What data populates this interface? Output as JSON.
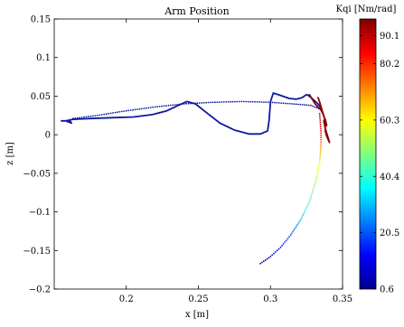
{
  "chart_data": {
    "type": "line",
    "title": "Arm Position",
    "xlabel": "x [m]",
    "ylabel": "z [m]",
    "xlim": [
      0.15,
      0.35
    ],
    "ylim": [
      -0.2,
      0.15
    ],
    "grid": false,
    "x_ticks": [
      0.2,
      0.25,
      0.3,
      0.35
    ],
    "x_tick_labels": [
      "0.2",
      "0.25",
      "0.3",
      "0.35"
    ],
    "y_ticks": [
      -0.2,
      -0.15,
      -0.1,
      -0.05,
      0,
      0.05,
      0.1,
      0.15
    ],
    "y_tick_labels": [
      "−0.2",
      "−0.15",
      "−0.1",
      "−0.05",
      "0",
      "0.05",
      "0.1",
      "0.15"
    ],
    "colorbar": {
      "title": "Kqi [Nm/rad]",
      "range": [
        0.6,
        96
      ],
      "ticks": [
        0.6,
        20.5,
        40.4,
        60.3,
        80.2,
        90.1
      ],
      "tick_labels": [
        "0.6",
        "20.5",
        "40.4",
        "60.3",
        "80.2",
        "90.1"
      ],
      "colormap": "jet"
    },
    "series": [
      {
        "style": "solid",
        "color": "#0c1a9e",
        "x": [
          0.155,
          0.161,
          0.162,
          0.158,
          0.163,
          0.175,
          0.19,
          0.205,
          0.218,
          0.228,
          0.236,
          0.242,
          0.248,
          0.256,
          0.265,
          0.275,
          0.285,
          0.293,
          0.298,
          0.299,
          0.3,
          0.302,
          0.307,
          0.313,
          0.318,
          0.322,
          0.325,
          0.327,
          0.33,
          0.333,
          0.335
        ],
        "y": [
          0.018,
          0.018,
          0.015,
          0.018,
          0.02,
          0.021,
          0.022,
          0.023,
          0.026,
          0.031,
          0.038,
          0.043,
          0.04,
          0.028,
          0.015,
          0.006,
          0.001,
          0.001,
          0.005,
          0.018,
          0.043,
          0.054,
          0.051,
          0.047,
          0.046,
          0.048,
          0.052,
          0.05,
          0.045,
          0.04,
          0.035
        ]
      },
      {
        "style": "dotted",
        "color": "#0c1a9e",
        "x": [
          0.163,
          0.18,
          0.2,
          0.22,
          0.24,
          0.26,
          0.28,
          0.3,
          0.315,
          0.328,
          0.336
        ],
        "y": [
          0.021,
          0.025,
          0.031,
          0.036,
          0.04,
          0.042,
          0.043,
          0.042,
          0.04,
          0.038,
          0.032
        ]
      },
      {
        "style": "dotted",
        "color_values": [
          0.6,
          5,
          12,
          20.5,
          30,
          40.4,
          50,
          60.3,
          72,
          85,
          96
        ],
        "x": [
          0.293,
          0.3,
          0.307,
          0.314,
          0.321,
          0.327,
          0.331,
          0.334,
          0.335,
          0.335,
          0.334
        ],
        "y": [
          -0.167,
          -0.158,
          -0.146,
          -0.13,
          -0.11,
          -0.087,
          -0.063,
          -0.038,
          -0.015,
          0.005,
          0.03
        ]
      },
      {
        "style": "solid",
        "color": "#8a0000",
        "x": [
          0.327,
          0.331,
          0.335,
          0.337,
          0.338,
          0.338,
          0.339,
          0.341,
          0.338,
          0.337,
          0.338,
          0.339,
          0.336,
          0.334,
          0.333
        ],
        "y": [
          0.052,
          0.04,
          0.032,
          0.025,
          0.015,
          0.005,
          -0.002,
          -0.01,
          0.008,
          0.018,
          0.02,
          0.012,
          0.03,
          0.043,
          0.048
        ]
      }
    ]
  }
}
